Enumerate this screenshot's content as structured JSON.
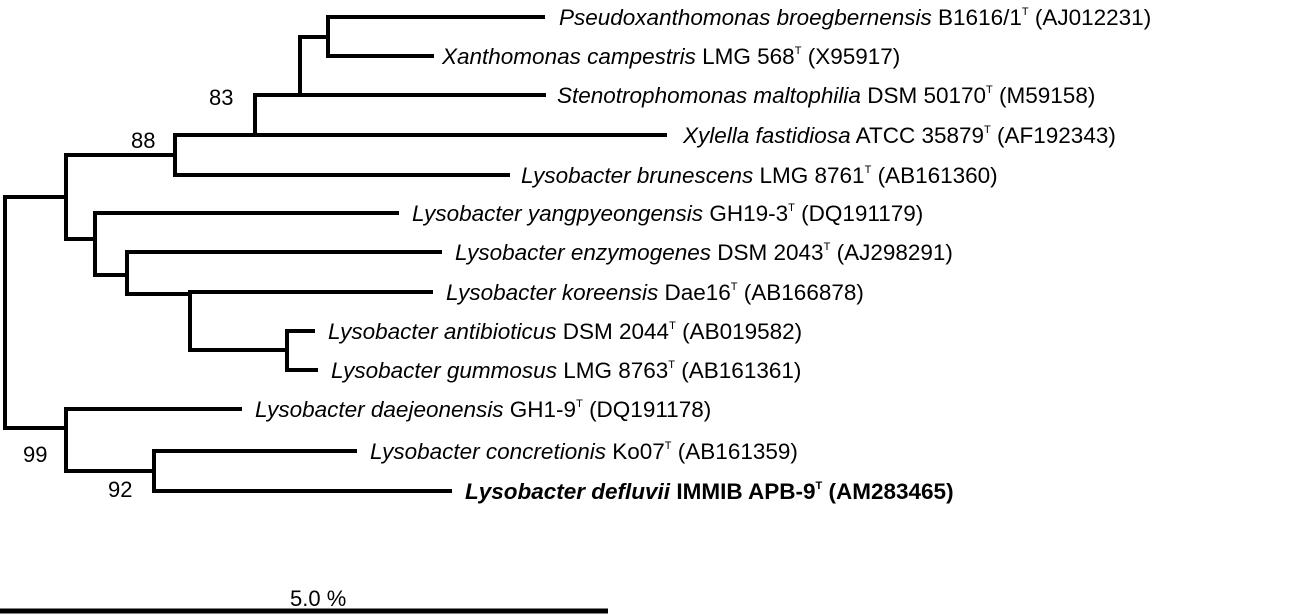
{
  "figure": {
    "taxa": [
      {
        "species": "Pseudoxanthomonas broegbernensis",
        "strain": "B1616/1",
        "type_mark": "T",
        "accession": "(AJ012231)",
        "bold": false
      },
      {
        "species": "Xanthomonas campestris",
        "strain": "LMG 568",
        "type_mark": "T",
        "accession": "(X95917)",
        "bold": false
      },
      {
        "species": "Stenotrophomonas maltophilia",
        "strain": "DSM 50170",
        "type_mark": "T",
        "accession": "(M59158)",
        "bold": false
      },
      {
        "species": "Xylella fastidiosa",
        "strain": "ATCC 35879",
        "type_mark": "T",
        "accession": "(AF192343)",
        "bold": false
      },
      {
        "species": "Lysobacter brunescens",
        "strain": "LMG 8761",
        "type_mark": "T",
        "accession": "(AB161360)",
        "bold": false
      },
      {
        "species": "Lysobacter yangpyeongensis",
        "strain": "GH19-3",
        "type_mark": "T",
        "accession": "(DQ191179)",
        "bold": false
      },
      {
        "species": "Lysobacter enzymogenes",
        "strain": "DSM 2043",
        "type_mark": "T",
        "accession": "(AJ298291)",
        "bold": false
      },
      {
        "species": "Lysobacter koreensis",
        "strain": "Dae16",
        "type_mark": "T",
        "accession": "(AB166878)",
        "bold": false
      },
      {
        "species": "Lysobacter antibioticus",
        "strain": "DSM 2044",
        "type_mark": "T",
        "accession": "(AB019582)",
        "bold": false
      },
      {
        "species": "Lysobacter gummosus",
        "strain": "LMG 8763",
        "type_mark": "T",
        "accession": "(AB161361)",
        "bold": false
      },
      {
        "species": "Lysobacter daejeonensis",
        "strain": "GH1-9",
        "type_mark": "T",
        "accession": "(DQ191178)",
        "bold": false
      },
      {
        "species": "Lysobacter concretionis",
        "strain": "Ko07",
        "type_mark": "T",
        "accession": "(AB161359)",
        "bold": false
      },
      {
        "species": "Lysobacter defluvii",
        "strain": "IMMIB APB-9",
        "type_mark": "T",
        "accession": "(AM283465)",
        "bold": true
      }
    ],
    "bootstrap_values": [
      "83",
      "88",
      "99",
      "92"
    ],
    "scale_bar": {
      "label": "5.0 %"
    }
  }
}
